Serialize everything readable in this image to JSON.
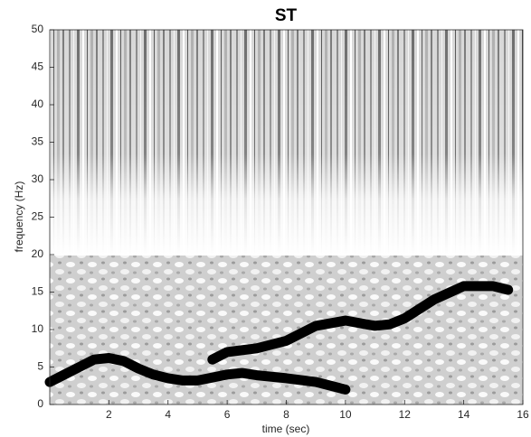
{
  "chart_data": {
    "type": "heatmap",
    "title": "ST",
    "xlabel": "time (sec)",
    "ylabel": "frequency (Hz)",
    "xlim": [
      0,
      16
    ],
    "ylim": [
      0,
      50
    ],
    "xticks": [
      2,
      4,
      6,
      8,
      10,
      12,
      14,
      16
    ],
    "yticks": [
      0,
      5,
      10,
      15,
      20,
      25,
      30,
      35,
      40,
      45,
      50
    ],
    "color": "#000000",
    "series": [
      {
        "x": [
          0,
          0.5,
          1,
          1.5,
          2,
          2.5,
          3,
          3.5,
          4,
          4.5,
          5,
          5.5,
          6,
          6.5,
          7,
          8,
          9,
          10
        ],
        "values": [
          3,
          4,
          5,
          6,
          6.2,
          5.8,
          4.8,
          4,
          3.5,
          3.2,
          3.2,
          3.6,
          4,
          4.2,
          3.9,
          3.5,
          3,
          2
        ]
      },
      {
        "x": [
          5.5,
          6,
          7,
          8,
          9,
          10,
          11,
          11.5,
          12,
          13,
          14,
          15,
          15.5
        ],
        "values": [
          6,
          7,
          7.5,
          8.5,
          10.5,
          11.2,
          10.5,
          10.7,
          11.5,
          14,
          15.8,
          15.8,
          15.3
        ]
      }
    ]
  }
}
